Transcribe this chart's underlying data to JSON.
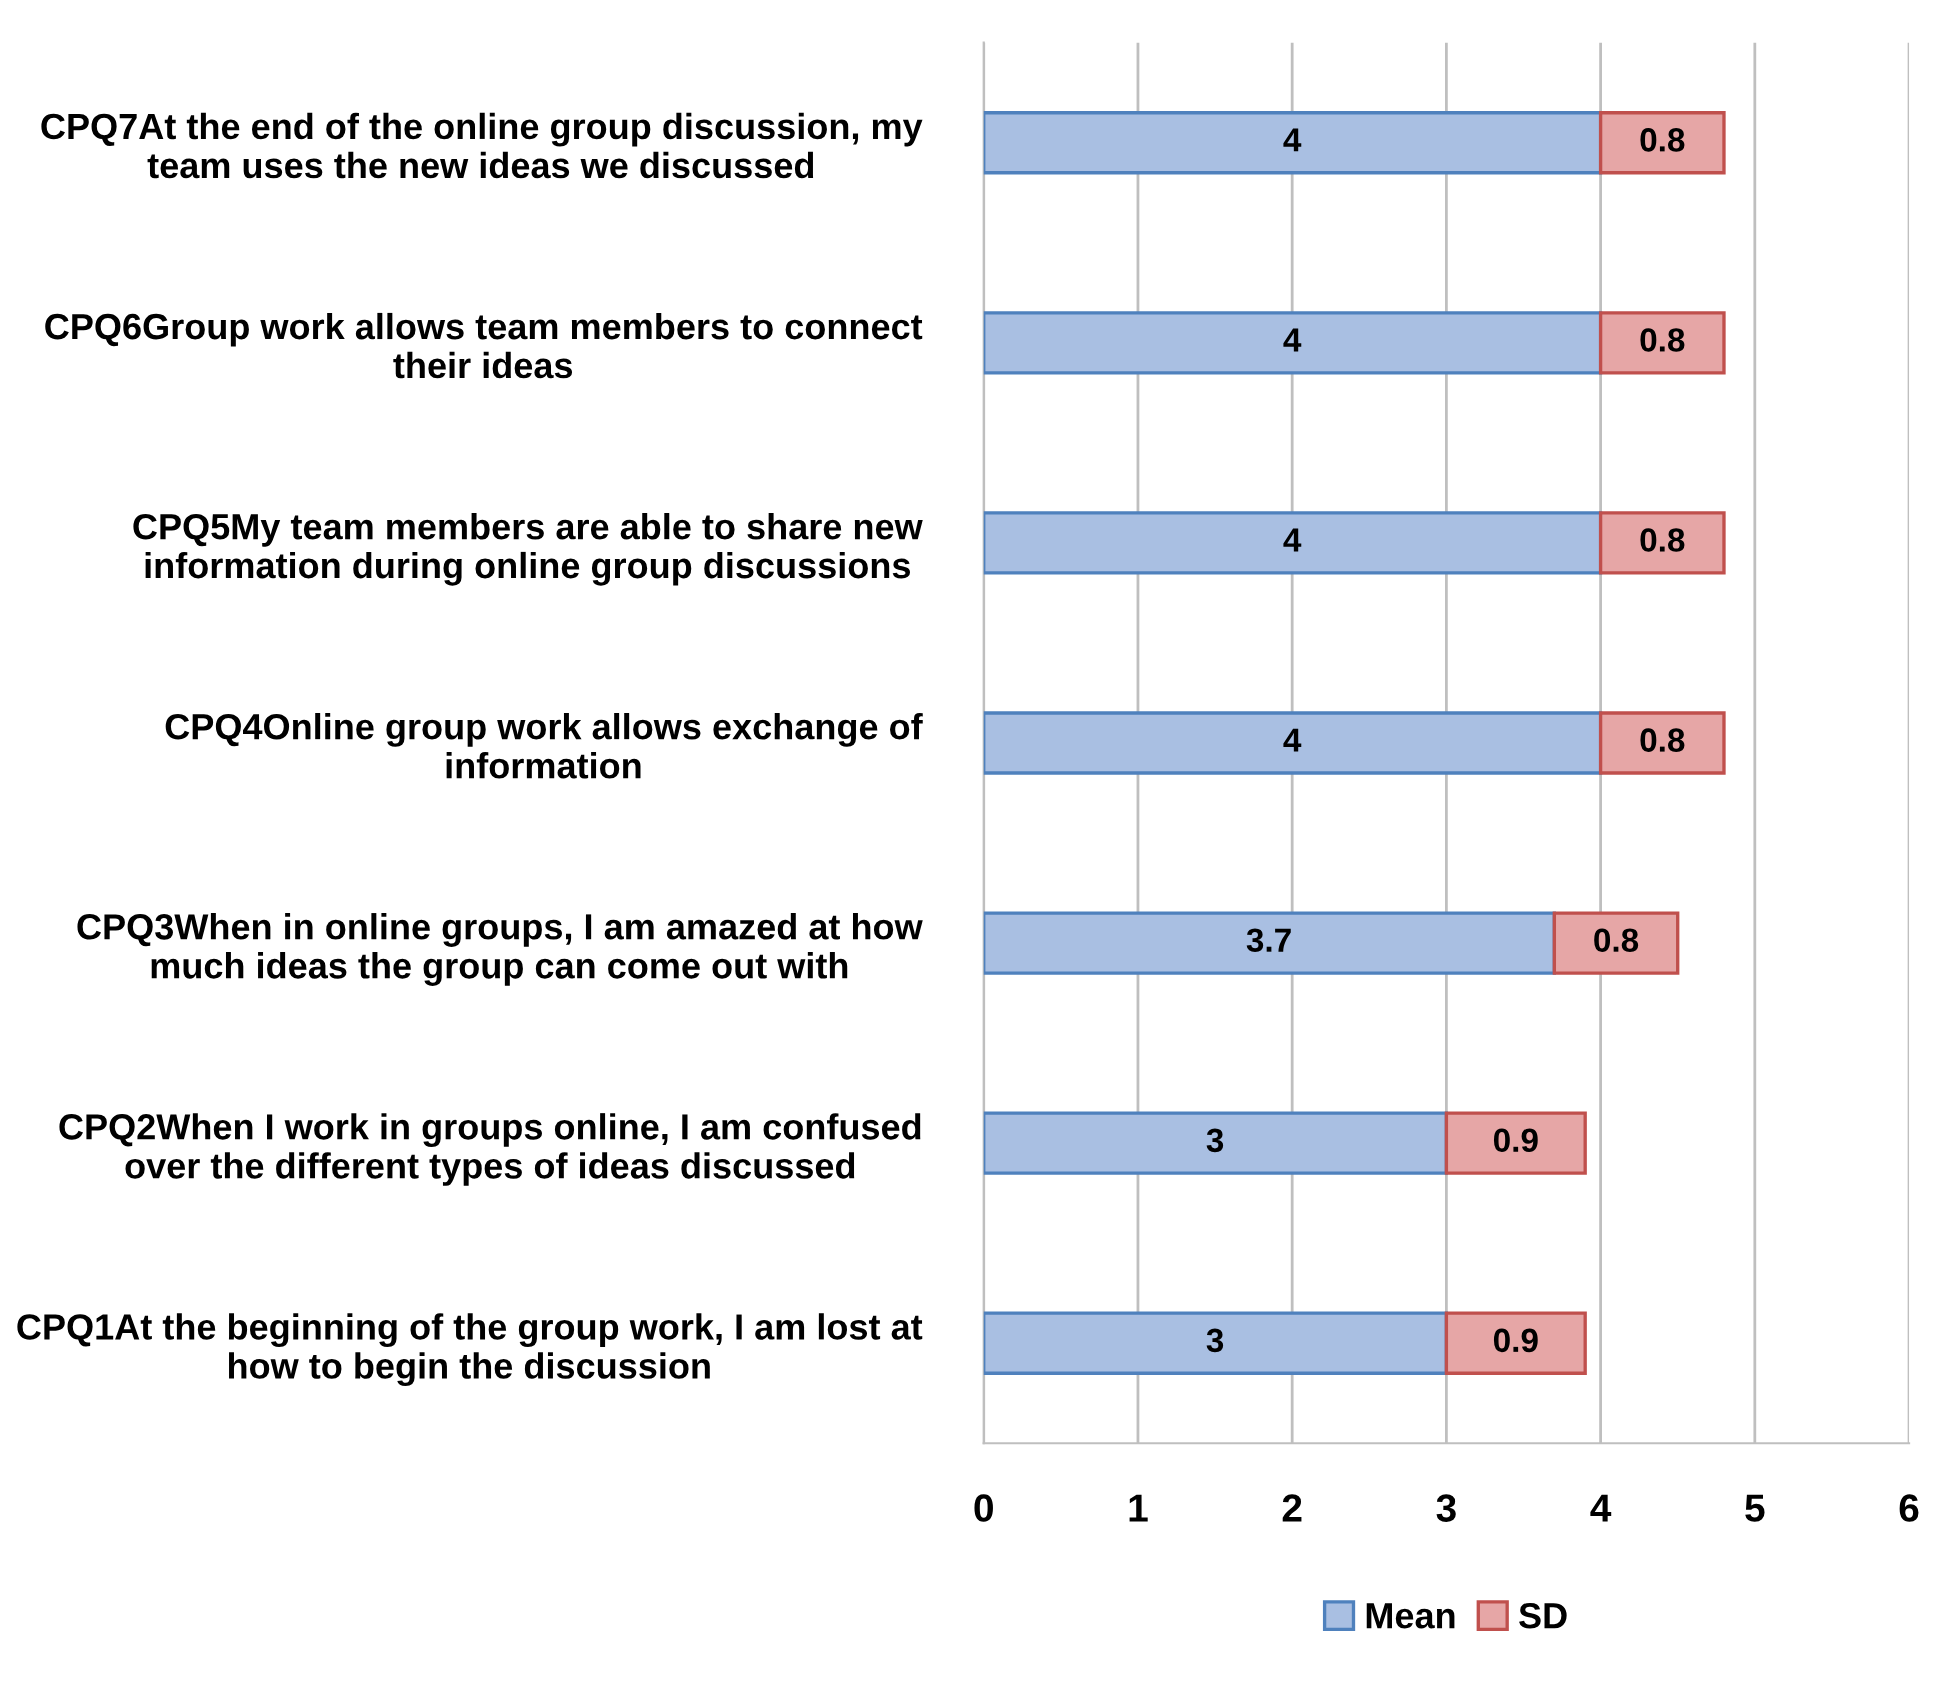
{
  "chart_data": {
    "type": "bar",
    "orientation": "horizontal",
    "stacked": true,
    "categories": [
      "CPQ7At the end of the online group discussion, my team uses the new ideas we discussed",
      "CPQ6Group work allows team members to connect their ideas",
      "CPQ5My team members are able to share new information during online group discussions",
      "CPQ4Online group work allows exchange of information",
      "CPQ3When in online groups, I am amazed at how much ideas the group can come out with",
      "CPQ2When I work in groups online, I am confused over the different types of ideas discussed",
      "CPQ1At the beginning of the group work, I am lost at how to begin the discussion"
    ],
    "series": [
      {
        "name": "Mean",
        "color": "#a9bfe2",
        "values": [
          4,
          4,
          4,
          4,
          3.7,
          3,
          3
        ]
      },
      {
        "name": "SD",
        "color": "#e6a6a6",
        "values": [
          0.8,
          0.8,
          0.8,
          0.8,
          0.8,
          0.9,
          0.9
        ]
      }
    ],
    "xlim": [
      0,
      6
    ],
    "xticks": [
      0,
      1,
      2,
      3,
      4,
      5,
      6
    ],
    "grid": "x",
    "legend": "bottom",
    "data_labels": true
  }
}
